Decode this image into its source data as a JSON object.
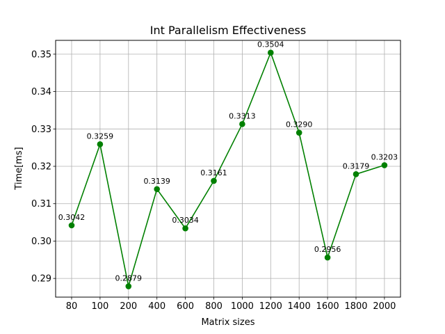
{
  "chart_data": {
    "type": "line",
    "title": "Int Parallelism Effectiveness",
    "xlabel": "Matrix sizes",
    "ylabel": "Time[ms]",
    "categories": [
      "80",
      "100",
      "200",
      "400",
      "600",
      "800",
      "1000",
      "1200",
      "1400",
      "1600",
      "1800",
      "2000"
    ],
    "values": [
      0.3042,
      0.3259,
      0.2879,
      0.3139,
      0.3034,
      0.3161,
      0.3313,
      0.3504,
      0.329,
      0.2956,
      0.3179,
      0.3203
    ],
    "data_labels": [
      "0.3042",
      "0.3259",
      "0.2879",
      "0.3139",
      "0.3034",
      "0.3161",
      "0.3313",
      "0.3504",
      "0.3290",
      "0.2956",
      "0.3179",
      "0.3203"
    ],
    "yticks": [
      "0.29",
      "0.30",
      "0.31",
      "0.32",
      "0.33",
      "0.34",
      "0.35"
    ],
    "ylim": [
      0.285,
      0.3537
    ],
    "grid": true,
    "line_color": "#008000",
    "marker_color": "#008000"
  }
}
